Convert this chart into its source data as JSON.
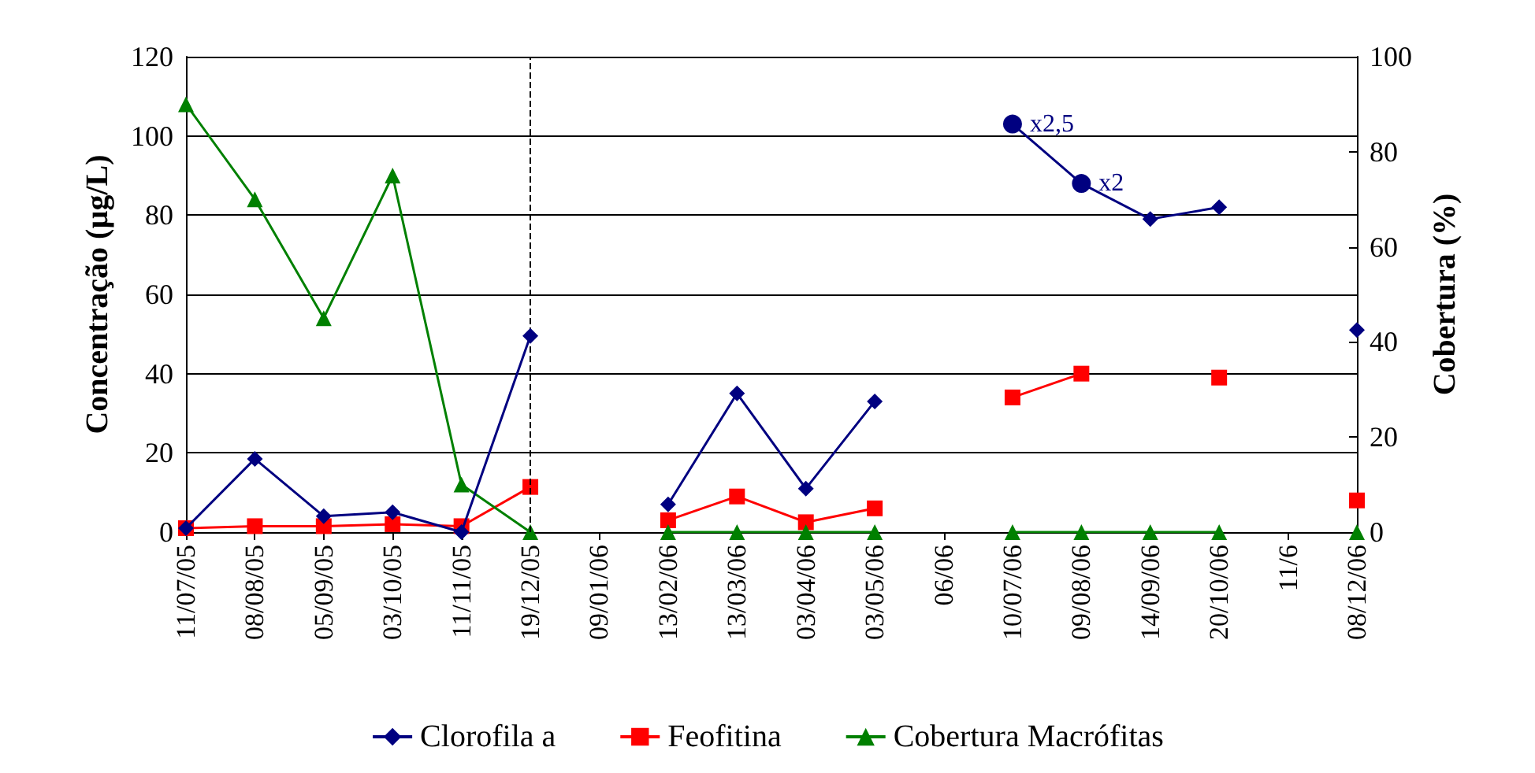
{
  "chart_data": {
    "type": "line",
    "categories": [
      "11/07/05",
      "08/08/05",
      "05/09/05",
      "03/10/05",
      "11/11/05",
      "19/12/05",
      "09/01/06",
      "13/02/06",
      "13/03/06",
      "03/04/06",
      "03/05/06",
      "06/06",
      "10/07/06",
      "09/08/06",
      "14/09/06",
      "20/10/06",
      "11/6",
      "08/12/06"
    ],
    "ylabel": "Concentração (µg/L)",
    "y2label": "Cobertura (%)",
    "ylim": [
      0,
      120
    ],
    "yticks": [
      0,
      20,
      40,
      60,
      80,
      100,
      120
    ],
    "y2lim": [
      0,
      100
    ],
    "y2ticks": [
      0,
      20,
      40,
      60,
      80,
      100
    ],
    "series": [
      {
        "name": "Clorofila a",
        "color": "#000080",
        "marker": "diamond",
        "values": [
          1,
          18.5,
          4,
          5,
          0,
          49.5,
          null,
          7,
          35,
          11,
          33,
          null,
          103,
          88,
          79,
          82,
          null,
          51
        ]
      },
      {
        "name": "Feofitina",
        "color": "#ff0000",
        "marker": "square",
        "values": [
          1,
          1.5,
          1.5,
          2,
          1.5,
          11.4,
          null,
          3,
          9,
          2.5,
          6,
          null,
          34,
          40,
          null,
          39,
          null,
          8
        ]
      },
      {
        "name": "Cobertura Macrófitas",
        "color": "#008000",
        "marker": "triangle",
        "axis": "y2",
        "values": [
          90,
          70,
          45,
          75,
          10,
          0,
          null,
          0,
          0,
          0,
          0,
          null,
          0,
          0,
          0,
          0,
          null,
          0
        ]
      }
    ],
    "annotations": [
      {
        "text": "x2,5",
        "x": "10/07/06",
        "y": 103
      },
      {
        "text": "x2",
        "x": "09/08/06",
        "y": 88
      }
    ],
    "ref_lines": [
      {
        "axis": "x",
        "value": "19/12/05",
        "line_style": "dashed",
        "color": "#000000"
      }
    ],
    "grid": "y",
    "legend": "bottom",
    "line_style": "solid"
  }
}
